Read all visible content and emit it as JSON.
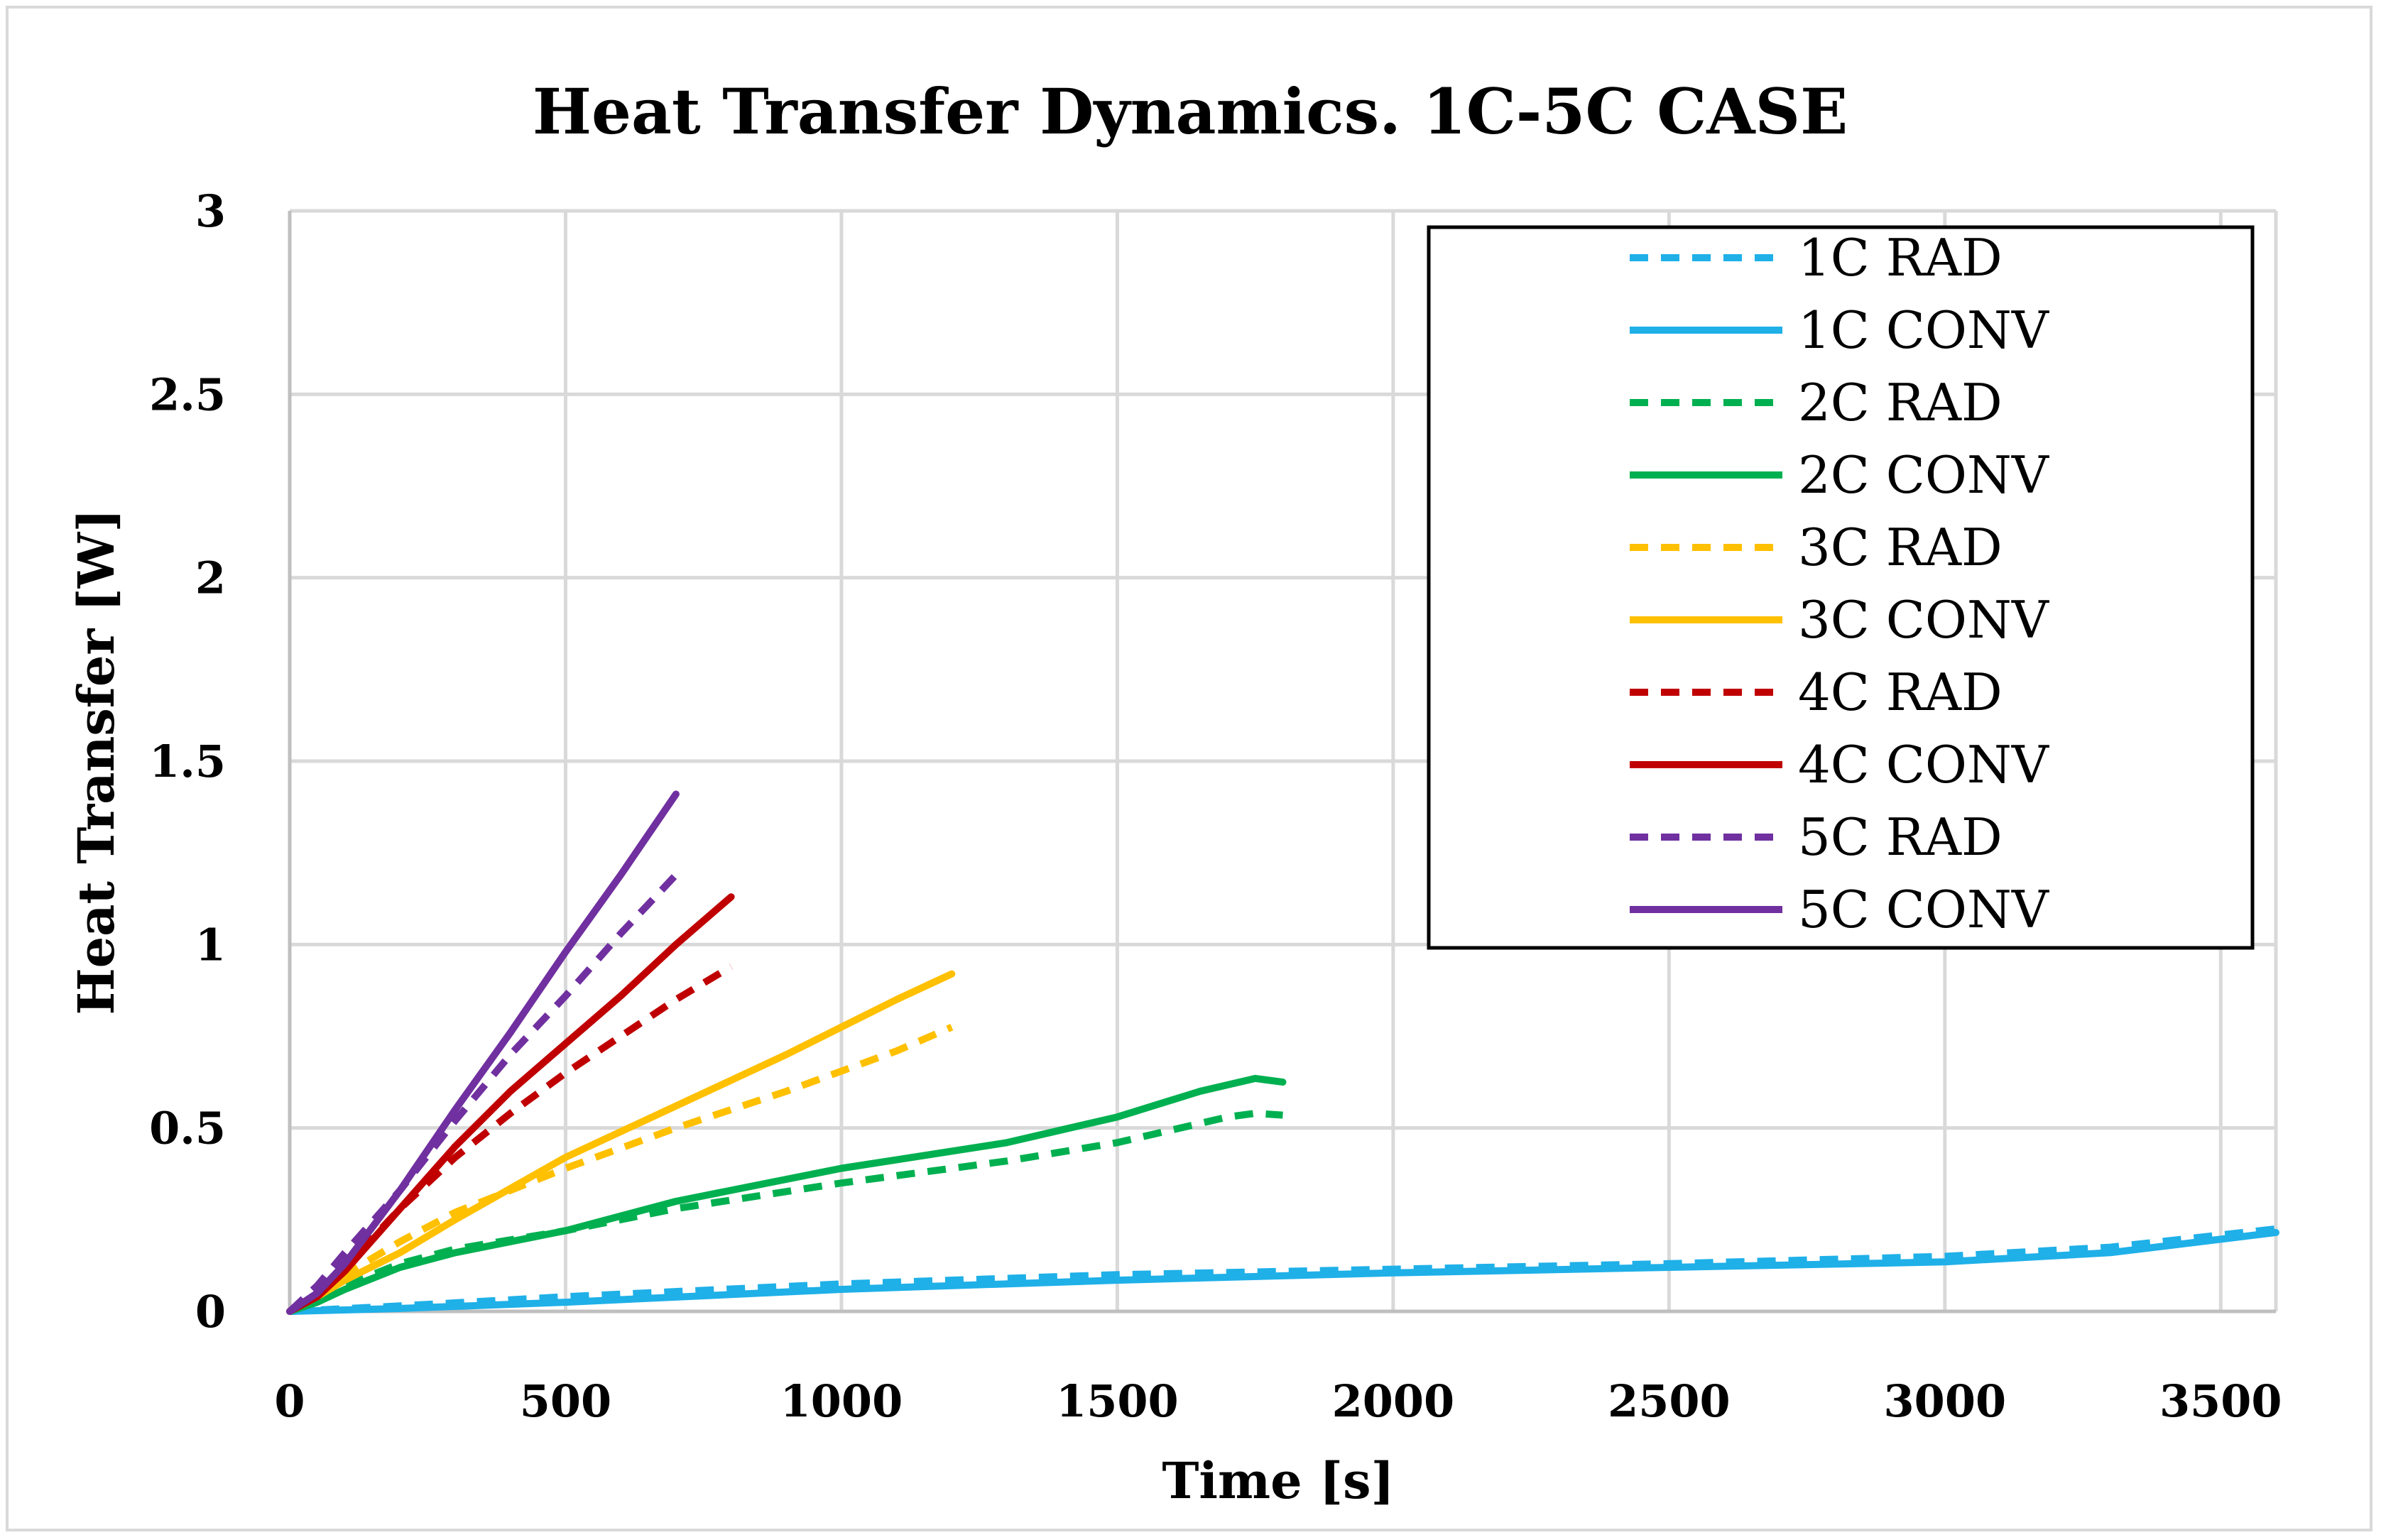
{
  "chart_data": {
    "type": "line",
    "title": "Heat Transfer Dynamics. 1C-5C CASE",
    "xlabel": "Time [s]",
    "ylabel": "Heat Transfer [W]",
    "xlim": [
      0,
      3600
    ],
    "ylim": [
      0,
      3
    ],
    "xticks": [
      "0",
      "500",
      "1000",
      "1500",
      "2000",
      "2500",
      "3000",
      "3500"
    ],
    "xtick_values": [
      0,
      500,
      1000,
      1500,
      2000,
      2500,
      3000,
      3500
    ],
    "yticks": [
      "0",
      "0.5",
      "1",
      "1.5",
      "2",
      "2.5",
      "3"
    ],
    "ytick_values": [
      0,
      0.5,
      1,
      1.5,
      2,
      2.5,
      3
    ],
    "grid": true,
    "legend_position": "top-right",
    "series": [
      {
        "name": "1C RAD",
        "color": "#1fb0e8",
        "dash": true,
        "x": [
          0,
          200,
          500,
          1000,
          1500,
          2000,
          2500,
          3000,
          3300,
          3600
        ],
        "y": [
          0,
          0.015,
          0.04,
          0.075,
          0.1,
          0.115,
          0.13,
          0.15,
          0.175,
          0.225
        ]
      },
      {
        "name": "1C CONV",
        "color": "#1fb0e8",
        "dash": false,
        "x": [
          0,
          200,
          500,
          1000,
          1500,
          2000,
          2500,
          3000,
          3300,
          3600
        ],
        "y": [
          0,
          0.008,
          0.025,
          0.06,
          0.085,
          0.105,
          0.12,
          0.135,
          0.16,
          0.215
        ]
      },
      {
        "name": "2C RAD",
        "color": "#00b050",
        "dash": true,
        "x": [
          0,
          50,
          100,
          200,
          300,
          500,
          700,
          1000,
          1300,
          1500,
          1700,
          1750,
          1800
        ],
        "y": [
          0,
          0.03,
          0.07,
          0.13,
          0.17,
          0.22,
          0.28,
          0.35,
          0.41,
          0.46,
          0.53,
          0.54,
          0.535
        ]
      },
      {
        "name": "2C CONV",
        "color": "#00b050",
        "dash": false,
        "x": [
          0,
          50,
          100,
          200,
          300,
          500,
          700,
          1000,
          1300,
          1500,
          1650,
          1750,
          1800
        ],
        "y": [
          0,
          0.025,
          0.06,
          0.12,
          0.16,
          0.22,
          0.3,
          0.39,
          0.46,
          0.53,
          0.6,
          0.635,
          0.625
        ]
      },
      {
        "name": "3C RAD",
        "color": "#ffc000",
        "dash": true,
        "x": [
          0,
          50,
          100,
          200,
          300,
          500,
          700,
          900,
          1100,
          1200
        ],
        "y": [
          0,
          0.05,
          0.1,
          0.19,
          0.27,
          0.39,
          0.5,
          0.6,
          0.71,
          0.775
        ]
      },
      {
        "name": "3C CONV",
        "color": "#ffc000",
        "dash": false,
        "x": [
          0,
          50,
          100,
          200,
          300,
          500,
          700,
          900,
          1100,
          1200
        ],
        "y": [
          0,
          0.04,
          0.085,
          0.16,
          0.25,
          0.42,
          0.56,
          0.7,
          0.85,
          0.92
        ]
      },
      {
        "name": "4C RAD",
        "color": "#c00000",
        "dash": true,
        "x": [
          0,
          50,
          100,
          200,
          300,
          400,
          500,
          600,
          700,
          800
        ],
        "y": [
          0,
          0.05,
          0.12,
          0.28,
          0.42,
          0.54,
          0.65,
          0.75,
          0.85,
          0.94
        ]
      },
      {
        "name": "4C CONV",
        "color": "#c00000",
        "dash": false,
        "x": [
          0,
          50,
          100,
          200,
          300,
          400,
          500,
          600,
          700,
          800
        ],
        "y": [
          0,
          0.04,
          0.11,
          0.28,
          0.45,
          0.6,
          0.73,
          0.86,
          1.0,
          1.13
        ]
      },
      {
        "name": "5C RAD",
        "color": "#7030a0",
        "dash": true,
        "x": [
          0,
          50,
          100,
          200,
          300,
          400,
          500,
          600,
          700
        ],
        "y": [
          0,
          0.07,
          0.16,
          0.33,
          0.52,
          0.7,
          0.86,
          1.03,
          1.19
        ]
      },
      {
        "name": "5C CONV",
        "color": "#7030a0",
        "dash": false,
        "x": [
          0,
          50,
          100,
          200,
          300,
          400,
          500,
          600,
          700
        ],
        "y": [
          0,
          0.05,
          0.13,
          0.33,
          0.55,
          0.76,
          0.98,
          1.19,
          1.41
        ]
      }
    ]
  }
}
